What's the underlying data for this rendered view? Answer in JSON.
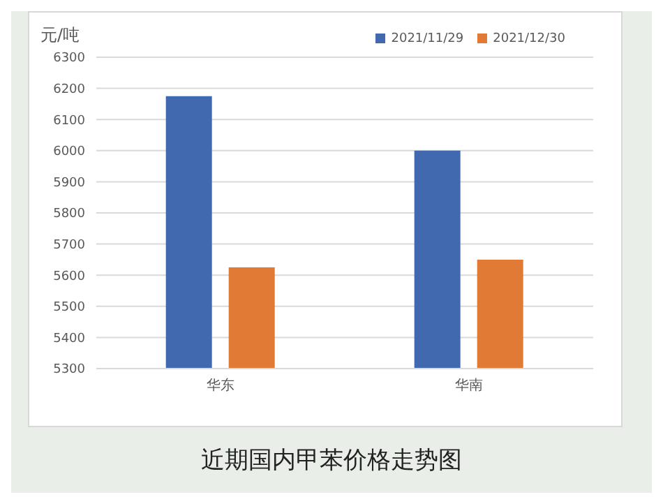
{
  "chart_data": {
    "type": "bar",
    "title": "近期国内甲苯价格走势图",
    "ylabel": "元/吨",
    "categories": [
      "华东",
      "华南"
    ],
    "series": [
      {
        "name": "2021/11/29",
        "color": "#4069b0",
        "values": [
          6175,
          6000
        ]
      },
      {
        "name": "2021/12/30",
        "color": "#e07a35",
        "values": [
          5625,
          5650
        ]
      }
    ],
    "ylim": [
      5300,
      6300
    ],
    "yticks": [
      5300,
      5400,
      5500,
      5600,
      5700,
      5800,
      5900,
      6000,
      6100,
      6200,
      6300
    ],
    "grid": "y",
    "legend": "top right"
  }
}
